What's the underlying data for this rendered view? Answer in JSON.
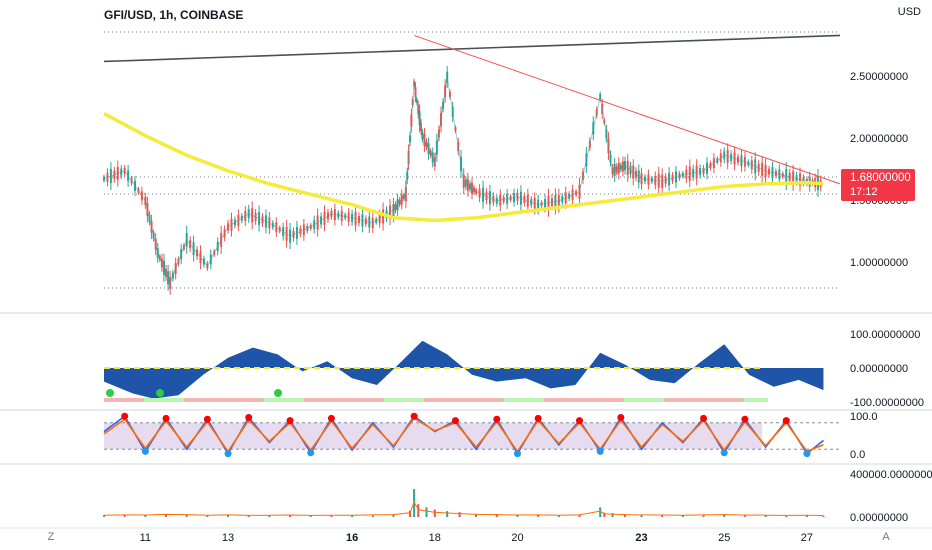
{
  "header": {
    "title": "GFI/USD, 1h, COINBASE",
    "currency": "USD"
  },
  "price_badge": {
    "price": "1.68000000",
    "countdown": "17:12",
    "color": "#f23645"
  },
  "corners": {
    "left": "Z",
    "right": "A"
  },
  "colors": {
    "up": "#26a69a",
    "down": "#ef5350",
    "ma": "#f5eb3b",
    "trend_dark": "#4a4e58",
    "trend_red": "#ef5350",
    "osc_blue": "#1e55a8",
    "stoch_band": "#e7dbf0"
  },
  "chart_data": [
    {
      "type": "line",
      "title": "GFI/USD, 1h, COINBASE",
      "x_tick_labels": [
        "11",
        "13",
        "16",
        "18",
        "20",
        "23",
        "25",
        "27"
      ],
      "y_tick_labels": [
        "2.50000000",
        "2.00000000",
        "1.50000000",
        "1.00000000"
      ],
      "ylim": [
        0.75,
        2.9
      ],
      "series": [
        {
          "x": [
            10.0,
            10.5,
            11.0,
            11.3,
            11.6,
            12.0,
            12.5,
            13.0,
            13.5,
            14.0,
            14.5,
            15.0,
            15.5,
            16.0,
            16.5,
            17.0,
            17.3,
            17.5,
            17.7,
            18.0,
            18.3,
            18.7,
            19.0,
            19.5,
            20.0,
            20.5,
            21.0,
            21.5,
            22.0,
            22.3,
            22.6,
            23.0,
            23.5,
            24.0,
            24.5,
            25.0,
            25.5,
            26.0,
            26.5,
            27.0,
            27.4
          ],
          "values": [
            1.72,
            1.78,
            1.55,
            1.15,
            0.92,
            1.25,
            1.05,
            1.35,
            1.45,
            1.38,
            1.28,
            1.35,
            1.45,
            1.42,
            1.38,
            1.48,
            1.6,
            2.45,
            2.05,
            1.85,
            2.5,
            1.7,
            1.62,
            1.55,
            1.58,
            1.52,
            1.55,
            1.62,
            2.35,
            1.78,
            1.82,
            1.72,
            1.7,
            1.75,
            1.78,
            1.9,
            1.85,
            1.78,
            1.74,
            1.7,
            1.68
          ]
        },
        {
          "name": "MA",
          "x": [
            10.0,
            11.0,
            12.0,
            13.0,
            14.0,
            15.0,
            16.0,
            17.0,
            18.0,
            19.0,
            20.0,
            21.0,
            22.0,
            23.0,
            24.0,
            25.0,
            26.0,
            27.0,
            27.4
          ],
          "values": [
            2.22,
            2.05,
            1.9,
            1.78,
            1.68,
            1.6,
            1.52,
            1.42,
            1.4,
            1.42,
            1.46,
            1.5,
            1.54,
            1.58,
            1.62,
            1.66,
            1.68,
            1.69,
            1.68
          ]
        },
        {
          "name": "Trendline 1",
          "x": [
            10.0,
            27.8
          ],
          "values": [
            2.62,
            2.82
          ]
        },
        {
          "name": "Trendline 2",
          "x": [
            17.5,
            27.8
          ],
          "values": [
            2.82,
            1.68
          ]
        }
      ]
    },
    {
      "type": "area",
      "y_tick_labels": [
        "100.00000000",
        "0.00000000",
        "-100.00000000"
      ],
      "ylim": [
        -120,
        120
      ],
      "x": [
        10.0,
        10.7,
        11.2,
        11.8,
        12.4,
        13.0,
        13.6,
        14.2,
        14.8,
        15.4,
        16.0,
        16.6,
        17.2,
        17.7,
        18.3,
        18.9,
        19.5,
        20.2,
        20.8,
        21.4,
        22.0,
        22.6,
        23.2,
        23.8,
        24.4,
        25.0,
        25.6,
        26.2,
        26.8,
        27.4
      ],
      "values": [
        -40,
        -75,
        -90,
        -80,
        -20,
        30,
        60,
        40,
        -10,
        20,
        -30,
        -50,
        20,
        80,
        40,
        -20,
        -40,
        -30,
        -60,
        -50,
        45,
        10,
        -35,
        -45,
        15,
        70,
        -20,
        -55,
        -35,
        -65
      ]
    },
    {
      "type": "line",
      "y_tick_labels": [
        "100.0",
        "0.0"
      ],
      "ylim": [
        0,
        100
      ],
      "series": [
        {
          "x": [
            10.0,
            10.5,
            11.0,
            11.5,
            12.0,
            12.5,
            13.0,
            13.5,
            14.0,
            14.5,
            15.0,
            15.5,
            16.0,
            16.5,
            17.0,
            17.5,
            18.0,
            18.5,
            19.0,
            19.5,
            20.0,
            20.5,
            21.0,
            21.5,
            22.0,
            22.5,
            23.0,
            23.5,
            24.0,
            24.5,
            25.0,
            25.5,
            26.0,
            26.5,
            27.0,
            27.4
          ],
          "values": [
            60,
            95,
            15,
            90,
            20,
            88,
            10,
            92,
            35,
            85,
            12,
            90,
            18,
            80,
            25,
            95,
            60,
            85,
            20,
            88,
            10,
            90,
            30,
            85,
            15,
            92,
            20,
            80,
            35,
            90,
            12,
            88,
            25,
            85,
            10,
            40
          ]
        },
        {
          "x": [
            10.0,
            10.5,
            11.0,
            11.5,
            12.0,
            12.5,
            13.0,
            13.5,
            14.0,
            14.5,
            15.0,
            15.5,
            16.0,
            16.5,
            17.0,
            17.5,
            18.0,
            18.5,
            19.0,
            19.5,
            20.0,
            20.5,
            21.0,
            21.5,
            22.0,
            22.5,
            23.0,
            23.5,
            24.0,
            24.5,
            25.0,
            25.5,
            26.0,
            26.5,
            27.0,
            27.4
          ],
          "values": [
            55,
            88,
            22,
            84,
            25,
            82,
            15,
            86,
            38,
            80,
            18,
            84,
            22,
            76,
            28,
            90,
            62,
            80,
            25,
            82,
            15,
            85,
            33,
            80,
            20,
            86,
            25,
            76,
            38,
            85,
            18,
            82,
            28,
            80,
            15,
            30
          ]
        }
      ]
    },
    {
      "type": "bar",
      "y_tick_labels": [
        "400000.00000000",
        "0.00000000"
      ],
      "ylim": [
        0,
        480000
      ],
      "x": [
        10.0,
        10.5,
        11.0,
        11.5,
        12.0,
        12.5,
        13.0,
        13.5,
        14.0,
        14.5,
        15.0,
        15.5,
        16.0,
        16.5,
        17.0,
        17.4,
        17.5,
        17.6,
        17.8,
        18.0,
        18.3,
        18.6,
        19.0,
        19.5,
        20.0,
        20.5,
        21.0,
        21.5,
        22.0,
        22.1,
        22.3,
        22.6,
        23.0,
        23.5,
        24.0,
        24.5,
        25.0,
        25.5,
        26.0,
        26.5,
        27.0,
        27.4
      ],
      "values": [
        15000,
        20000,
        18000,
        30000,
        25000,
        15000,
        20000,
        12000,
        15000,
        18000,
        12000,
        15000,
        14000,
        20000,
        25000,
        60000,
        260000,
        120000,
        90000,
        70000,
        55000,
        45000,
        30000,
        25000,
        18000,
        20000,
        15000,
        22000,
        90000,
        40000,
        35000,
        25000,
        20000,
        18000,
        15000,
        20000,
        25000,
        18000,
        15000,
        12000,
        14000,
        10000
      ]
    }
  ]
}
